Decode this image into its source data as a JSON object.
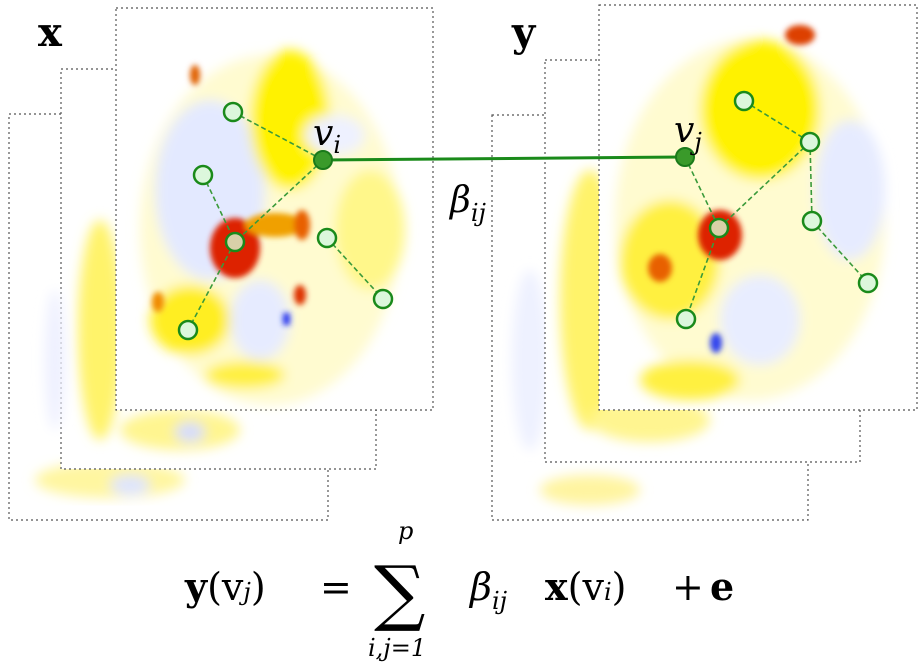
{
  "left_panel": {
    "label": "x",
    "hub_label": "v",
    "hub_sub": "i"
  },
  "right_panel": {
    "label": "y",
    "hub_label": "v",
    "hub_sub": "j"
  },
  "link": {
    "label": "β",
    "sub": "ij"
  },
  "equation": {
    "lhs": "y",
    "lhs_arg": "(v",
    "lhs_arg_sub": "j",
    "lhs_close": ")",
    "equals": "=",
    "sum_symbol": "∑",
    "sum_upper": "p",
    "sum_lower": "i,j=1",
    "coef": "β",
    "coef_sub": "ij",
    "term": "x",
    "term_arg": "(v",
    "term_arg_sub": "i",
    "term_close": ")",
    "plus": "+",
    "error": "e"
  },
  "colors": {
    "edge": "#1a8a1a",
    "hot": "#dd2200",
    "warm": "#ffee00",
    "cold": "#2233ee"
  }
}
